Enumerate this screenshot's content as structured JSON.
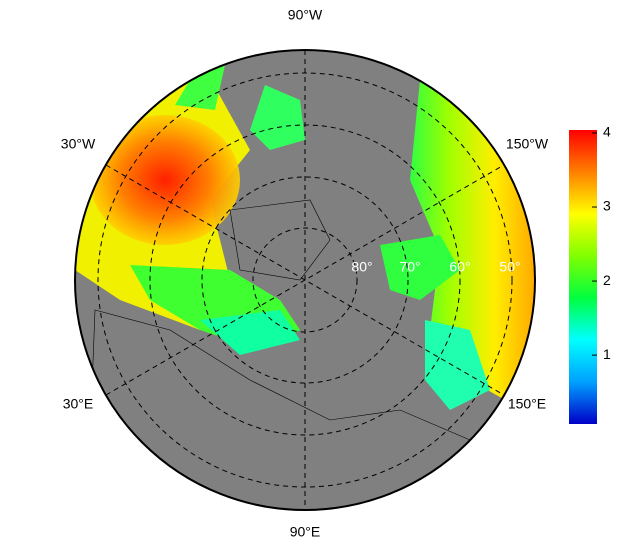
{
  "map": {
    "longitude_labels": [
      "90°W",
      "30°W",
      "150°W",
      "30°E",
      "150°E",
      "90°E"
    ],
    "latitude_labels": [
      "80°",
      "70°",
      "60°",
      "50°"
    ]
  },
  "colorbar": {
    "lim": [
      0.07,
      4.04
    ],
    "ticks": [
      1,
      2,
      3,
      4
    ],
    "colors": [
      "#0000c8",
      "#00a0ff",
      "#00ffff",
      "#00ff40",
      "#80ff00",
      "#ffff00",
      "#ff8000",
      "#ff0000"
    ]
  }
}
